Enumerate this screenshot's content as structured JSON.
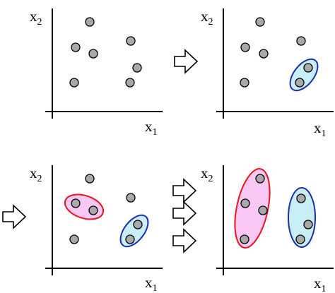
{
  "axis_labels": {
    "x_main": "x",
    "x_sub": "1",
    "y_main": "x",
    "y_sub": "2"
  },
  "colors": {
    "point_fill": "#a9a9a9",
    "point_stroke": "#000000",
    "cluster_red_stroke": "#e8141e",
    "cluster_red_fill": "#f9c8f4",
    "cluster_blue_stroke": "#1c2fb0",
    "cluster_blue_fill": "#c8eef6",
    "arrow_fill": "#ffffff"
  },
  "panels": [
    {
      "name": "step-1",
      "points": 7,
      "clusters": []
    },
    {
      "name": "step-2",
      "points": 7,
      "clusters": [
        "blue"
      ]
    },
    {
      "name": "step-3",
      "points": 7,
      "clusters": [
        "red",
        "blue"
      ]
    },
    {
      "name": "step-4",
      "points": 7,
      "clusters": [
        "red",
        "blue"
      ]
    }
  ],
  "arrow_icon": "outline-right-arrow-icon"
}
